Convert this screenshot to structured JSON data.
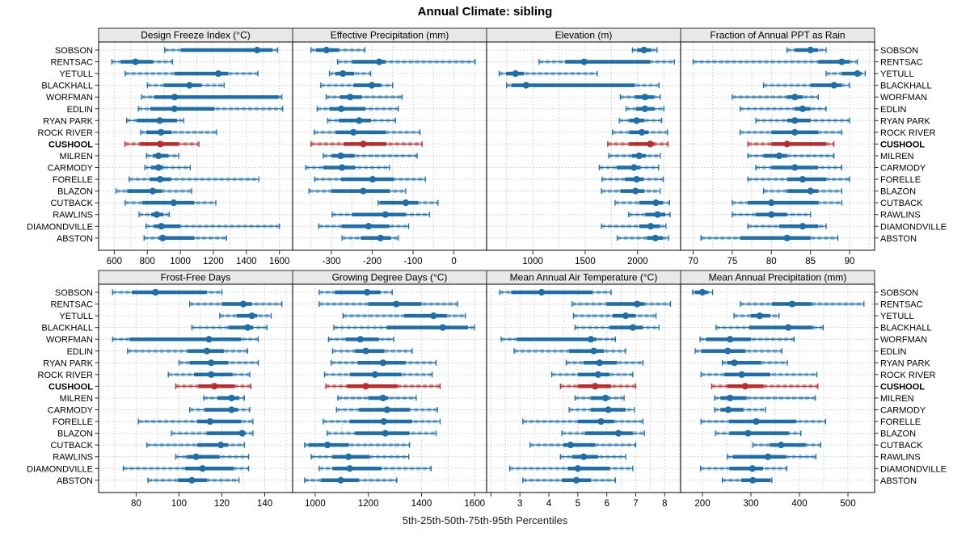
{
  "title": "Annual Climate: sibling",
  "xlabel": "5th-25th-50th-75th-95th Percentiles",
  "colors": {
    "blue": "#1d6ea9",
    "blue_light": "#9ec6e0",
    "red": "#bd2c2c",
    "red_light": "#e09b9b",
    "header_bg": "#e8e8e8",
    "panel_bg": "#ffffff",
    "gridline": "#c9c9c9",
    "border": "#2b2b2b"
  },
  "chart_data": {
    "type": "dotplot-percentiles",
    "title": "Annual Climate: sibling",
    "xlabel": "5th-25th-50th-75th-95th Percentiles",
    "percentiles": [
      5,
      25,
      50,
      75,
      95
    ],
    "highlight_site": "CUSHOOL",
    "sites": [
      "SOBSON",
      "RENTSAC",
      "YETULL",
      "BLACKHALL",
      "WORFMAN",
      "EDLIN",
      "RYAN PARK",
      "ROCK RIVER",
      "CUSHOOL",
      "MILREN",
      "CARMODY",
      "FORELLE",
      "BLAZON",
      "CUTBACK",
      "RAWLINS",
      "DIAMONDVILLE",
      "ABSTON"
    ],
    "panels": [
      {
        "id": "design-freeze-index",
        "title": "Design Freeze Index (°C)",
        "row": 0,
        "col": 0,
        "xlim": [
          505,
          1680
        ],
        "ticks": [
          600,
          800,
          1000,
          1200,
          1400,
          1600
        ],
        "series": [
          [
            905,
            1005,
            1465,
            1560,
            1590
          ],
          [
            585,
            640,
            728,
            834,
            953
          ],
          [
            665,
            965,
            1230,
            1290,
            1470
          ],
          [
            800,
            900,
            1055,
            1127,
            1265
          ],
          [
            765,
            840,
            965,
            1595,
            1615
          ],
          [
            745,
            818,
            964,
            1208,
            1620
          ],
          [
            675,
            737,
            875,
            980,
            1020
          ],
          [
            760,
            793,
            883,
            948,
            1220
          ],
          [
            665,
            754,
            878,
            990,
            1112
          ],
          [
            795,
            833,
            868,
            927,
            990
          ],
          [
            785,
            821,
            868,
            898,
            1060
          ],
          [
            690,
            816,
            878,
            943,
            1475
          ],
          [
            610,
            678,
            833,
            889,
            1068
          ],
          [
            665,
            770,
            960,
            1085,
            1215
          ],
          [
            750,
            824,
            857,
            898,
            933
          ],
          [
            792,
            841,
            885,
            1000,
            1600
          ],
          [
            780,
            870,
            893,
            1085,
            1280
          ]
        ]
      },
      {
        "id": "effective-precipitation",
        "title": "Effective Precipitation (mm)",
        "row": 0,
        "col": 1,
        "xlim": [
          -395,
          80
        ],
        "ticks": [
          -300,
          -200,
          -100,
          0
        ],
        "series": [
          [
            -350,
            -338,
            -312,
            -282,
            -218
          ],
          [
            -285,
            -249,
            -183,
            -168,
            52
          ],
          [
            -305,
            -291,
            -272,
            -244,
            -204
          ],
          [
            -326,
            -246,
            -201,
            -179,
            -150
          ],
          [
            -313,
            -279,
            -254,
            -226,
            -127
          ],
          [
            -335,
            -305,
            -276,
            -217,
            -136
          ],
          [
            -309,
            -282,
            -232,
            -203,
            -143
          ],
          [
            -342,
            -289,
            -246,
            -167,
            -83
          ],
          [
            -350,
            -270,
            -222,
            -165,
            -78
          ],
          [
            -320,
            -299,
            -277,
            -243,
            -90
          ],
          [
            -363,
            -320,
            -274,
            -241,
            -158
          ],
          [
            -341,
            -277,
            -199,
            -147,
            -70
          ],
          [
            -355,
            -300,
            -222,
            -157,
            -118
          ],
          [
            -186,
            -182,
            -118,
            -88,
            -39
          ],
          [
            -298,
            -249,
            -168,
            -118,
            -60
          ],
          [
            -331,
            -275,
            -209,
            -158,
            -111
          ],
          [
            -274,
            -228,
            -180,
            -155,
            -136
          ]
        ]
      },
      {
        "id": "elevation",
        "title": "Elevation (m)",
        "row": 0,
        "col": 2,
        "xlim": [
          560,
          2410
        ],
        "ticks": [
          1000,
          1500,
          2000
        ],
        "series": [
          [
            1950,
            1995,
            2060,
            2130,
            2185
          ],
          [
            1060,
            1310,
            1490,
            2120,
            2350
          ],
          [
            680,
            745,
            835,
            915,
            1615
          ],
          [
            750,
            795,
            935,
            1975,
            2205
          ],
          [
            1835,
            1975,
            2070,
            2155,
            2215
          ],
          [
            1890,
            1985,
            2070,
            2160,
            2250
          ],
          [
            1825,
            1920,
            1990,
            2065,
            2230
          ],
          [
            1760,
            1920,
            2040,
            2105,
            2285
          ],
          [
            1715,
            1920,
            2120,
            2160,
            2290
          ],
          [
            1725,
            1945,
            2015,
            2080,
            2215
          ],
          [
            1635,
            1800,
            1965,
            2025,
            2200
          ],
          [
            1660,
            1880,
            1990,
            2055,
            2245
          ],
          [
            1655,
            1835,
            1980,
            2065,
            2215
          ],
          [
            1785,
            2015,
            2175,
            2240,
            2305
          ],
          [
            1915,
            2075,
            2190,
            2265,
            2310
          ],
          [
            1655,
            2015,
            2125,
            2210,
            2270
          ],
          [
            1805,
            2090,
            2170,
            2240,
            2295
          ]
        ]
      },
      {
        "id": "fraction-annual-ppt-as-rain",
        "title": "Fraction of Annual PPT as Rain",
        "row": 0,
        "col": 3,
        "xlim": [
          68.4,
          93.2
        ],
        "ticks": [
          70,
          75,
          80,
          85,
          90
        ],
        "series": [
          [
            82,
            83,
            85,
            86,
            87
          ],
          [
            70,
            86,
            89,
            90,
            91
          ],
          [
            87,
            89,
            91,
            91.5,
            92
          ],
          [
            79,
            85,
            88,
            89,
            90
          ],
          [
            75,
            82,
            83,
            84,
            86
          ],
          [
            76,
            83,
            84,
            85,
            87
          ],
          [
            78,
            82,
            83,
            85,
            90
          ],
          [
            76,
            80,
            83,
            86,
            89
          ],
          [
            77,
            80,
            82,
            87,
            88
          ],
          [
            77,
            79,
            81,
            82,
            88
          ],
          [
            78,
            80,
            83,
            86,
            89
          ],
          [
            77,
            82,
            84,
            87,
            90
          ],
          [
            79,
            82,
            85,
            86,
            89
          ],
          [
            75,
            77,
            80,
            86,
            89
          ],
          [
            75,
            78,
            80,
            82,
            85
          ],
          [
            77,
            81,
            84,
            86,
            87
          ],
          [
            71,
            76,
            82,
            85,
            88.5
          ]
        ]
      },
      {
        "id": "frost-free-days",
        "title": "Frost-Free Days",
        "row": 1,
        "col": 0,
        "xlim": [
          62.5,
          153
        ],
        "ticks": [
          80,
          100,
          120,
          140
        ],
        "series": [
          [
            69,
            78,
            89,
            113,
            120
          ],
          [
            105,
            120,
            130,
            134,
            148
          ],
          [
            119,
            127,
            134,
            136.5,
            143
          ],
          [
            106,
            123,
            132,
            134.5,
            141
          ],
          [
            69,
            77,
            114,
            129,
            137
          ],
          [
            76,
            104,
            113,
            121,
            132
          ],
          [
            100,
            105,
            115,
            123,
            137
          ],
          [
            95,
            107,
            115,
            125,
            133
          ],
          [
            98.5,
            109,
            116.5,
            126,
            133.5
          ],
          [
            111.5,
            118,
            124.5,
            128,
            130.5
          ],
          [
            105,
            112,
            124.5,
            127.5,
            133
          ],
          [
            81,
            108.5,
            114.5,
            129,
            134.5
          ],
          [
            96.5,
            113,
            129.5,
            130.5,
            134.5
          ],
          [
            85,
            108.5,
            119.5,
            123,
            130.5
          ],
          [
            98.5,
            103.5,
            108,
            119,
            132.5
          ],
          [
            74,
            103,
            111,
            125.5,
            132.5
          ],
          [
            85.5,
            99.5,
            106,
            113,
            128
          ]
        ]
      },
      {
        "id": "growing-degree-days",
        "title": "Growing Degree Days (°C)",
        "row": 1,
        "col": 1,
        "xlim": [
          915,
          1645
        ],
        "ticks": [
          1000,
          1200,
          1400,
          1600
        ],
        "series": [
          [
            1015,
            1075,
            1195,
            1245,
            1290
          ],
          [
            1015,
            1200,
            1305,
            1400,
            1535
          ],
          [
            1105,
            1335,
            1445,
            1495,
            1565
          ],
          [
            1070,
            1270,
            1480,
            1575,
            1600
          ],
          [
            1050,
            1115,
            1170,
            1240,
            1295
          ],
          [
            1065,
            1150,
            1190,
            1260,
            1365
          ],
          [
            1060,
            1160,
            1255,
            1340,
            1455
          ],
          [
            1035,
            1130,
            1225,
            1325,
            1440
          ],
          [
            1040,
            1120,
            1190,
            1310,
            1470
          ],
          [
            1085,
            1200,
            1255,
            1275,
            1380
          ],
          [
            1080,
            1165,
            1270,
            1355,
            1460
          ],
          [
            1030,
            1130,
            1258,
            1365,
            1470
          ],
          [
            1045,
            1150,
            1264,
            1355,
            1455
          ],
          [
            960,
            975,
            1046,
            1127,
            1355
          ],
          [
            985,
            1065,
            1125,
            1205,
            1352
          ],
          [
            1015,
            1065,
            1130,
            1250,
            1436
          ],
          [
            960,
            1022,
            1096,
            1164,
            1307
          ]
        ]
      },
      {
        "id": "mean-annual-air-temperature",
        "title": "Mean Annual Air Temperature (°C)",
        "row": 1,
        "col": 2,
        "xlim": [
          1.85,
          8.55
        ],
        "ticks": [
          2,
          3,
          4,
          5,
          6,
          7,
          8
        ],
        "tick_labels": [
          "",
          "3",
          "4",
          "5",
          "6",
          "7",
          "8"
        ],
        "series": [
          [
            2.3,
            2.7,
            3.75,
            5.5,
            6.15
          ],
          [
            4.8,
            6.0,
            7.05,
            7.3,
            8.2
          ],
          [
            4.85,
            6.2,
            6.65,
            7.0,
            7.7
          ],
          [
            4.9,
            6.1,
            6.9,
            7.25,
            7.8
          ],
          [
            2.35,
            2.9,
            5.45,
            5.65,
            6.3
          ],
          [
            2.8,
            4.7,
            5.55,
            5.9,
            6.65
          ],
          [
            4.6,
            5.2,
            5.75,
            6.35,
            7.25
          ],
          [
            4.1,
            5.0,
            5.7,
            6.1,
            6.9
          ],
          [
            4.4,
            5.0,
            5.6,
            6.15,
            7.0
          ],
          [
            4.9,
            5.45,
            5.95,
            6.1,
            6.6
          ],
          [
            4.7,
            5.45,
            6.05,
            6.65,
            6.95
          ],
          [
            3.1,
            5.0,
            5.8,
            6.25,
            7.25
          ],
          [
            4.45,
            5.25,
            6.4,
            6.9,
            7.3
          ],
          [
            3.35,
            4.5,
            4.75,
            5.6,
            7.0
          ],
          [
            4.4,
            4.8,
            5.2,
            5.7,
            6.65
          ],
          [
            2.65,
            4.65,
            5.0,
            6.1,
            6.9
          ],
          [
            3.1,
            4.45,
            4.95,
            5.45,
            6.3
          ]
        ]
      },
      {
        "id": "mean-annual-precipitation",
        "title": "Mean Annual Precipitation (mm)",
        "row": 1,
        "col": 3,
        "xlim": [
          155,
          555
        ],
        "ticks": [
          200,
          300,
          400,
          500
        ],
        "series": [
          [
            180,
            185,
            200,
            211,
            221
          ],
          [
            278,
            343,
            385,
            426,
            533
          ],
          [
            265,
            300,
            318,
            340,
            358
          ],
          [
            228,
            296,
            377,
            428,
            449
          ],
          [
            195,
            207,
            257,
            300,
            389
          ],
          [
            185,
            197,
            252,
            289,
            364
          ],
          [
            241,
            251,
            266,
            321,
            375
          ],
          [
            197,
            245,
            281,
            340,
            436
          ],
          [
            219,
            251,
            288,
            326,
            438
          ],
          [
            225,
            237,
            257,
            291,
            433
          ],
          [
            225,
            237,
            253,
            284,
            330
          ],
          [
            197,
            255,
            311,
            394,
            454
          ],
          [
            227,
            256,
            294,
            378,
            403
          ],
          [
            304,
            339,
            362,
            413,
            444
          ],
          [
            251,
            262,
            335,
            372,
            434
          ],
          [
            196,
            256,
            303,
            325,
            374
          ],
          [
            241,
            280,
            304,
            340,
            343
          ]
        ]
      }
    ]
  }
}
